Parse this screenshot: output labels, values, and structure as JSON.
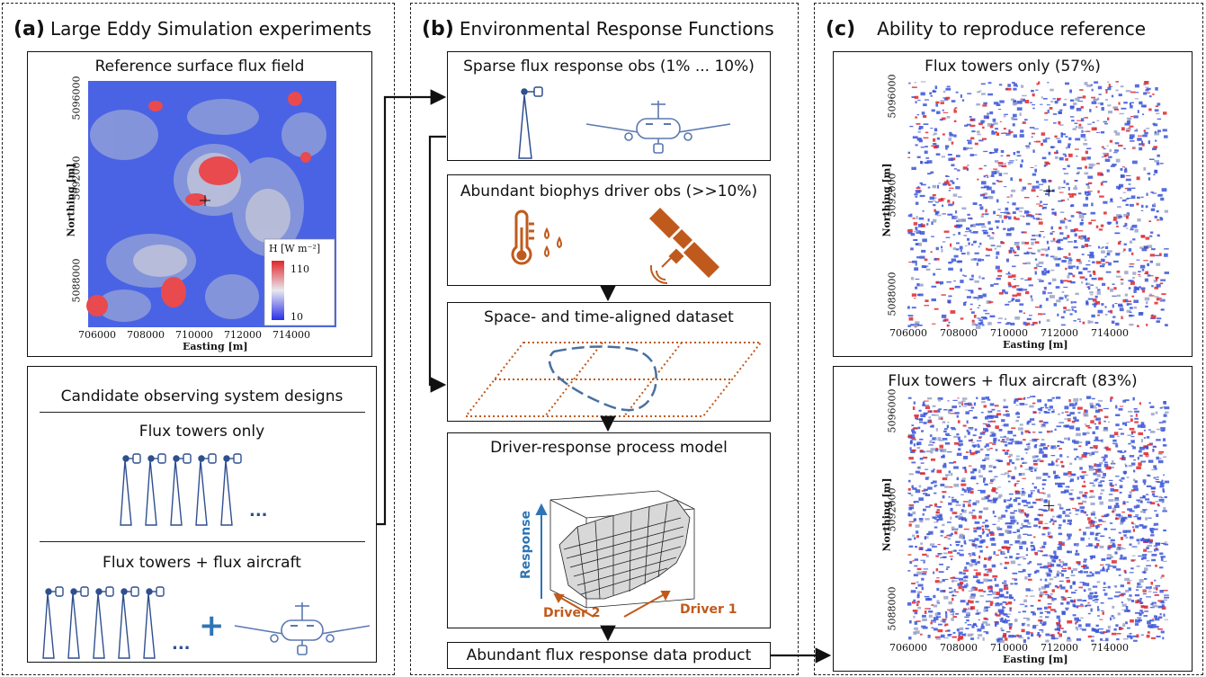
{
  "panel_a": {
    "letter": "(a)",
    "title": "Large Eddy Simulation experiments",
    "reference_box": {
      "title": "Reference surface flux field",
      "x_ticks": [
        "706000",
        "708000",
        "710000",
        "712000",
        "714000"
      ],
      "y_ticks": [
        "5096000",
        "5092000",
        "5088000"
      ],
      "x_label": "Easting [m]",
      "y_label": "Northing [m]",
      "colorbar_label": "H [W m⁻²]",
      "colorbar_max": "110",
      "colorbar_min": "10"
    },
    "candidates_box": {
      "title": "Candidate observing system designs",
      "option1": "Flux towers only",
      "option2": "Flux towers + flux aircraft",
      "ellipsis": "...",
      "plus": "+"
    }
  },
  "panel_b": {
    "letter": "(b)",
    "title": "Environmental Response Functions",
    "sparse_box": "Sparse flux response obs (1% ... 10%)",
    "abundant_box": "Abundant biophys driver obs (>>10%)",
    "aligned_box": "Space- and time-aligned dataset",
    "model_box": {
      "title": "Driver-response process model",
      "axis_response": "Response",
      "axis_driver1": "Driver 1",
      "axis_driver2": "Driver 2"
    },
    "product_box": "Abundant flux response data product"
  },
  "panel_c": {
    "letter": "(c)",
    "title": "Ability to reproduce reference",
    "top_box": {
      "title": "Flux towers only (57%)",
      "x_ticks": [
        "706000",
        "708000",
        "710000",
        "712000",
        "714000"
      ],
      "y_ticks": [
        "5096000",
        "5092000",
        "5088000"
      ],
      "x_label": "Easting [m]",
      "y_label": "Northing [m]"
    },
    "bottom_box": {
      "title": "Flux towers + flux aircraft (83%)",
      "x_ticks": [
        "706000",
        "708000",
        "710000",
        "712000",
        "714000"
      ],
      "y_ticks": [
        "5096000",
        "5092000",
        "5088000"
      ],
      "x_label": "Easting [m]",
      "y_label": "Northing [m]"
    }
  },
  "colors": {
    "tower_blue": "#2f4f8f",
    "aircraft_blue": "#5a78b0",
    "driver_orange": "#c05a1c",
    "heat_red": "#e0262a",
    "heat_blue": "#3048e0"
  }
}
